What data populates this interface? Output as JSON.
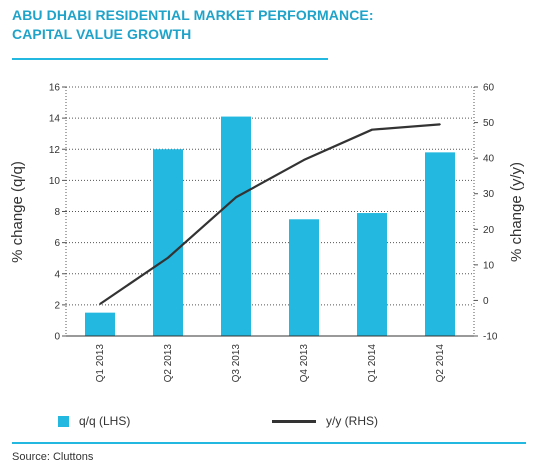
{
  "title_line1": "ABU DHABI RESIDENTIAL MARKET PERFORMANCE:",
  "title_line2": "CAPITAL VALUE GROWTH",
  "legend": {
    "bar_label": "q/q (LHS)",
    "line_label": "y/y (RHS)"
  },
  "source": "Source: Cluttons",
  "colors": {
    "accent": "#22b8df",
    "line": "#333333"
  },
  "chart_data": {
    "type": "bar",
    "categories": [
      "Q1 2013",
      "Q2 2013",
      "Q3 2013",
      "Q4 2013",
      "Q1 2014",
      "Q2 2014"
    ],
    "series": [
      {
        "name": "q/q (LHS)",
        "type": "bar",
        "axis": "left",
        "values": [
          1.5,
          12.0,
          14.1,
          7.5,
          7.9,
          11.8
        ]
      },
      {
        "name": "y/y (RHS)",
        "type": "line",
        "axis": "right",
        "values": [
          -1.0,
          12.0,
          29.0,
          39.5,
          48.0,
          49.5
        ]
      }
    ],
    "ylabel_left": "% change (q/q)",
    "ylabel_right": "% change (y/y)",
    "ylim_left": [
      0,
      16
    ],
    "ylim_right": [
      -10,
      60
    ],
    "yticks_left": [
      "0",
      "2",
      "4",
      "6",
      "8",
      "10",
      "12",
      "14",
      "16"
    ],
    "yticks_right": [
      "-10",
      "0",
      "10",
      "20",
      "30",
      "40",
      "50",
      "60"
    ],
    "grid": "horizontal dotted",
    "legend_position": "bottom"
  }
}
